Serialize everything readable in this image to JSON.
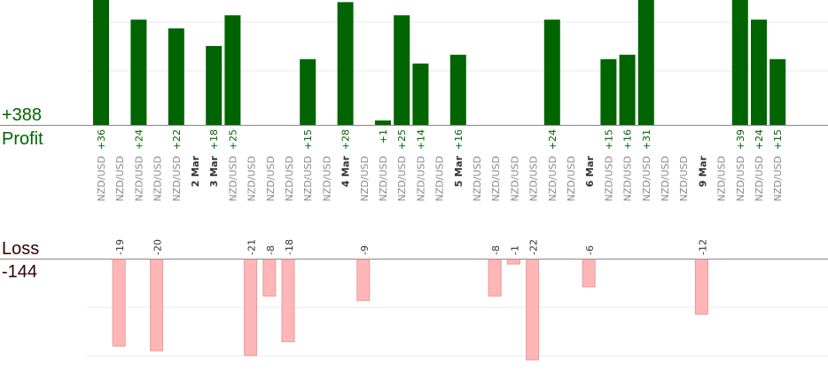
{
  "chart_data": {
    "type": "bar",
    "summary": {
      "profit_total": "+388",
      "profit_label": "Profit",
      "loss_label": "Loss",
      "loss_total": "-144"
    },
    "pair": "NZD/USD",
    "dates": [
      "2 Mar",
      "3 Mar",
      "4 Mar",
      "5 Mar",
      "6 Mar",
      "9 Mar"
    ],
    "trades": [
      {
        "value": 36
      },
      {
        "value": -19
      },
      {
        "value": 24
      },
      {
        "value": -20
      },
      {
        "value": 22
      },
      {
        "date": "2 Mar",
        "value": null
      },
      {
        "date": "3 Mar",
        "value": 18
      },
      {
        "value": 25
      },
      {
        "value": -21
      },
      {
        "value": -8
      },
      {
        "value": -18
      },
      {
        "value": 15
      },
      {
        "value": null
      },
      {
        "date": "4 Mar",
        "value": 28
      },
      {
        "value": -9
      },
      {
        "value": 1
      },
      {
        "value": 25
      },
      {
        "value": 14
      },
      {
        "value": null
      },
      {
        "date": "5 Mar",
        "value": 16
      },
      {
        "value": null
      },
      {
        "value": -8
      },
      {
        "value": -1
      },
      {
        "value": -22
      },
      {
        "value": 24
      },
      {
        "value": null
      },
      {
        "date": "6 Mar",
        "value": -6
      },
      {
        "value": 15
      },
      {
        "value": 16
      },
      {
        "value": 31
      },
      {
        "value": null
      },
      {
        "value": null
      },
      {
        "date": "9 Mar",
        "value": -12
      },
      {
        "value": null
      },
      {
        "value": 39
      },
      {
        "value": 24
      },
      {
        "value": 15
      }
    ],
    "colors": {
      "profit": "#006400",
      "loss_fill": "#ffb6b6",
      "loss_stroke": "#e89a9a",
      "profit_text": "#006400",
      "loss_text": "#330000",
      "bar_label_profit": "#006400",
      "bar_label_loss": "#333333",
      "grid": "#e8e8e8",
      "baseline": "#888888"
    },
    "grid": true
  }
}
